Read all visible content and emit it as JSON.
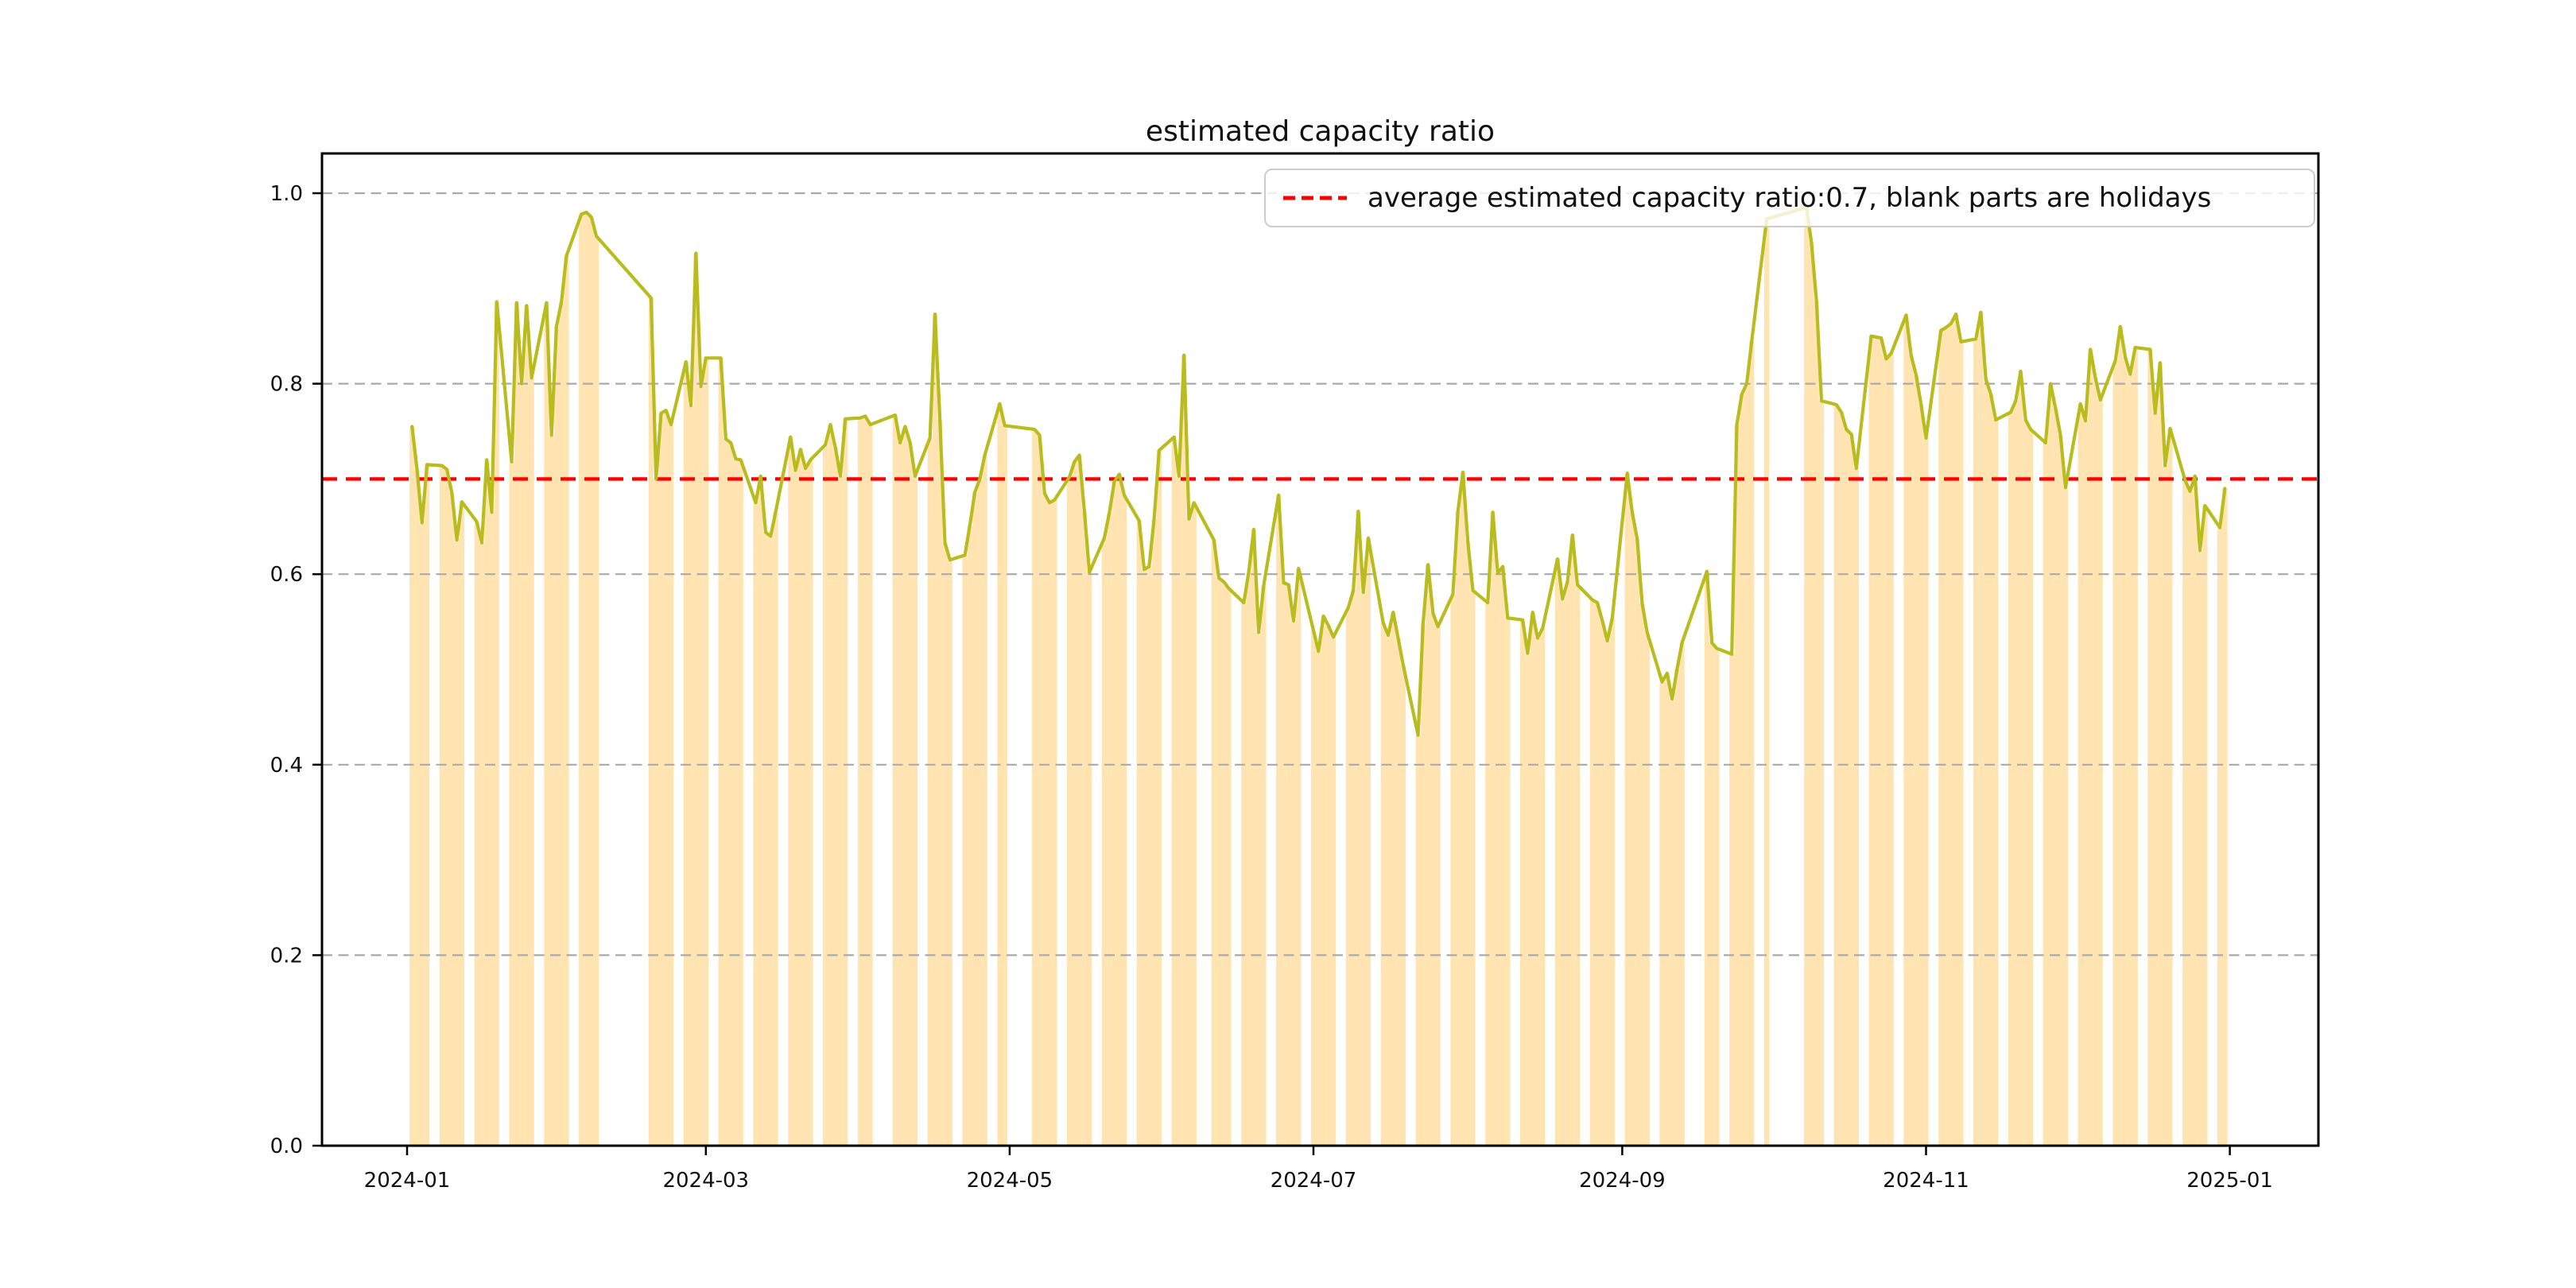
{
  "figure": {
    "title": "estimated capacity ratio",
    "background_color": "#ffffff"
  },
  "legend": {
    "label": "average estimated capacity ratio:0.7, blank parts are holidays",
    "marker": "red-dashed-line",
    "marker_color": "#ff0000"
  },
  "chart_data": {
    "type": "line",
    "overlay_type": "bar",
    "title": "estimated capacity ratio",
    "xlabel": "",
    "ylabel": "",
    "ylim": [
      0,
      1.0414
    ],
    "grid": "horizontal-dashed",
    "legend_position": "upper right",
    "line_color": "#b8bc1e",
    "bar_color": "#ffa600",
    "bar_opacity": 0.3,
    "grid_color": "#aaaaaa",
    "average_line": {
      "value": 0.7,
      "color": "#ff0000",
      "style": "dashed",
      "label": "average estimated capacity ratio:0.7, blank parts are holidays"
    },
    "x_ticks": [
      {
        "label": "2024-01",
        "date": "2024-01-01"
      },
      {
        "label": "2024-03",
        "date": "2024-03-01"
      },
      {
        "label": "2024-05",
        "date": "2024-05-01"
      },
      {
        "label": "2024-07",
        "date": "2024-07-01"
      },
      {
        "label": "2024-09",
        "date": "2024-09-01"
      },
      {
        "label": "2024-11",
        "date": "2024-11-01"
      },
      {
        "label": "2025-01",
        "date": "2025-01-01"
      }
    ],
    "y_ticks": [
      {
        "label": "0.0",
        "value": 0.0
      },
      {
        "label": "0.2",
        "value": 0.2
      },
      {
        "label": "0.4",
        "value": 0.4
      },
      {
        "label": "0.6",
        "value": 0.6
      },
      {
        "label": "0.8",
        "value": 0.8
      },
      {
        "label": "1.0",
        "value": 1.0
      }
    ],
    "series": [
      {
        "name": "estimated capacity ratio",
        "points": [
          [
            "2024-01-02",
            0.755
          ],
          [
            "2024-01-03",
            0.71
          ],
          [
            "2024-01-04",
            0.654
          ],
          [
            "2024-01-05",
            0.715
          ],
          [
            "2024-01-08",
            0.714
          ],
          [
            "2024-01-09",
            0.71
          ],
          [
            "2024-01-10",
            0.685
          ],
          [
            "2024-01-11",
            0.636
          ],
          [
            "2024-01-12",
            0.676
          ],
          [
            "2024-01-15",
            0.655
          ],
          [
            "2024-01-16",
            0.633
          ],
          [
            "2024-01-17",
            0.72
          ],
          [
            "2024-01-18",
            0.665
          ],
          [
            "2024-01-19",
            0.886
          ],
          [
            "2024-01-22",
            0.718
          ],
          [
            "2024-01-23",
            0.885
          ],
          [
            "2024-01-24",
            0.8
          ],
          [
            "2024-01-25",
            0.882
          ],
          [
            "2024-01-26",
            0.806
          ],
          [
            "2024-01-29",
            0.885
          ],
          [
            "2024-01-30",
            0.746
          ],
          [
            "2024-01-31",
            0.86
          ],
          [
            "2024-02-01",
            0.886
          ],
          [
            "2024-02-02",
            0.934
          ],
          [
            "2024-02-05",
            0.978
          ],
          [
            "2024-02-06",
            0.98
          ],
          [
            "2024-02-07",
            0.975
          ],
          [
            "2024-02-08",
            0.955
          ],
          [
            "2024-02-19",
            0.89
          ],
          [
            "2024-02-20",
            0.7
          ],
          [
            "2024-02-21",
            0.769
          ],
          [
            "2024-02-22",
            0.772
          ],
          [
            "2024-02-23",
            0.757
          ],
          [
            "2024-02-26",
            0.823
          ],
          [
            "2024-02-27",
            0.777
          ],
          [
            "2024-02-28",
            0.937
          ],
          [
            "2024-02-29",
            0.797
          ],
          [
            "2024-03-01",
            0.827
          ],
          [
            "2024-03-04",
            0.827
          ],
          [
            "2024-03-05",
            0.742
          ],
          [
            "2024-03-06",
            0.738
          ],
          [
            "2024-03-07",
            0.721
          ],
          [
            "2024-03-08",
            0.72
          ],
          [
            "2024-03-11",
            0.675
          ],
          [
            "2024-03-12",
            0.703
          ],
          [
            "2024-03-13",
            0.644
          ],
          [
            "2024-03-14",
            0.64
          ],
          [
            "2024-03-15",
            0.665
          ],
          [
            "2024-03-18",
            0.744
          ],
          [
            "2024-03-19",
            0.709
          ],
          [
            "2024-03-20",
            0.731
          ],
          [
            "2024-03-21",
            0.711
          ],
          [
            "2024-03-22",
            0.72
          ],
          [
            "2024-03-25",
            0.736
          ],
          [
            "2024-03-26",
            0.757
          ],
          [
            "2024-03-27",
            0.733
          ],
          [
            "2024-03-28",
            0.703
          ],
          [
            "2024-03-29",
            0.763
          ],
          [
            "2024-04-01",
            0.764
          ],
          [
            "2024-04-02",
            0.766
          ],
          [
            "2024-04-03",
            0.757
          ],
          [
            "2024-04-08",
            0.767
          ],
          [
            "2024-04-09",
            0.738
          ],
          [
            "2024-04-10",
            0.755
          ],
          [
            "2024-04-11",
            0.738
          ],
          [
            "2024-04-12",
            0.703
          ],
          [
            "2024-04-15",
            0.743
          ],
          [
            "2024-04-16",
            0.873
          ],
          [
            "2024-04-17",
            0.762
          ],
          [
            "2024-04-18",
            0.633
          ],
          [
            "2024-04-19",
            0.615
          ],
          [
            "2024-04-22",
            0.62
          ],
          [
            "2024-04-23",
            0.651
          ],
          [
            "2024-04-24",
            0.686
          ],
          [
            "2024-04-25",
            0.7
          ],
          [
            "2024-04-26",
            0.725
          ],
          [
            "2024-04-29",
            0.779
          ],
          [
            "2024-04-30",
            0.756
          ],
          [
            "2024-05-06",
            0.752
          ],
          [
            "2024-05-07",
            0.746
          ],
          [
            "2024-05-08",
            0.685
          ],
          [
            "2024-05-09",
            0.675
          ],
          [
            "2024-05-10",
            0.678
          ],
          [
            "2024-05-13",
            0.702
          ],
          [
            "2024-05-14",
            0.718
          ],
          [
            "2024-05-15",
            0.725
          ],
          [
            "2024-05-16",
            0.666
          ],
          [
            "2024-05-17",
            0.602
          ],
          [
            "2024-05-20",
            0.638
          ],
          [
            "2024-05-21",
            0.664
          ],
          [
            "2024-05-22",
            0.697
          ],
          [
            "2024-05-23",
            0.705
          ],
          [
            "2024-05-24",
            0.683
          ],
          [
            "2024-05-27",
            0.656
          ],
          [
            "2024-05-28",
            0.605
          ],
          [
            "2024-05-29",
            0.608
          ],
          [
            "2024-05-30",
            0.658
          ],
          [
            "2024-05-31",
            0.73
          ],
          [
            "2024-06-03",
            0.744
          ],
          [
            "2024-06-04",
            0.703
          ],
          [
            "2024-06-05",
            0.83
          ],
          [
            "2024-06-06",
            0.658
          ],
          [
            "2024-06-07",
            0.675
          ],
          [
            "2024-06-11",
            0.636
          ],
          [
            "2024-06-12",
            0.596
          ],
          [
            "2024-06-13",
            0.592
          ],
          [
            "2024-06-14",
            0.585
          ],
          [
            "2024-06-17",
            0.57
          ],
          [
            "2024-06-18",
            0.602
          ],
          [
            "2024-06-19",
            0.647
          ],
          [
            "2024-06-20",
            0.539
          ],
          [
            "2024-06-21",
            0.588
          ],
          [
            "2024-06-24",
            0.683
          ],
          [
            "2024-06-25",
            0.591
          ],
          [
            "2024-06-26",
            0.589
          ],
          [
            "2024-06-27",
            0.551
          ],
          [
            "2024-06-28",
            0.606
          ],
          [
            "2024-07-01",
            0.541
          ],
          [
            "2024-07-02",
            0.519
          ],
          [
            "2024-07-03",
            0.556
          ],
          [
            "2024-07-04",
            0.546
          ],
          [
            "2024-07-05",
            0.534
          ],
          [
            "2024-07-08",
            0.565
          ],
          [
            "2024-07-09",
            0.583
          ],
          [
            "2024-07-10",
            0.666
          ],
          [
            "2024-07-11",
            0.581
          ],
          [
            "2024-07-12",
            0.638
          ],
          [
            "2024-07-15",
            0.549
          ],
          [
            "2024-07-16",
            0.536
          ],
          [
            "2024-07-17",
            0.56
          ],
          [
            "2024-07-18",
            0.533
          ],
          [
            "2024-07-19",
            0.505
          ],
          [
            "2024-07-22",
            0.431
          ],
          [
            "2024-07-23",
            0.548
          ],
          [
            "2024-07-24",
            0.61
          ],
          [
            "2024-07-25",
            0.559
          ],
          [
            "2024-07-26",
            0.545
          ],
          [
            "2024-07-29",
            0.579
          ],
          [
            "2024-07-30",
            0.666
          ],
          [
            "2024-07-31",
            0.707
          ],
          [
            "2024-08-01",
            0.634
          ],
          [
            "2024-08-02",
            0.583
          ],
          [
            "2024-08-05",
            0.57
          ],
          [
            "2024-08-06",
            0.665
          ],
          [
            "2024-08-07",
            0.601
          ],
          [
            "2024-08-08",
            0.608
          ],
          [
            "2024-08-09",
            0.554
          ],
          [
            "2024-08-12",
            0.552
          ],
          [
            "2024-08-13",
            0.517
          ],
          [
            "2024-08-14",
            0.56
          ],
          [
            "2024-08-15",
            0.533
          ],
          [
            "2024-08-16",
            0.543
          ],
          [
            "2024-08-19",
            0.616
          ],
          [
            "2024-08-20",
            0.574
          ],
          [
            "2024-08-21",
            0.592
          ],
          [
            "2024-08-22",
            0.641
          ],
          [
            "2024-08-23",
            0.589
          ],
          [
            "2024-08-26",
            0.573
          ],
          [
            "2024-08-27",
            0.57
          ],
          [
            "2024-08-28",
            0.551
          ],
          [
            "2024-08-29",
            0.53
          ],
          [
            "2024-08-30",
            0.554
          ],
          [
            "2024-09-02",
            0.706
          ],
          [
            "2024-09-03",
            0.665
          ],
          [
            "2024-09-04",
            0.637
          ],
          [
            "2024-09-05",
            0.569
          ],
          [
            "2024-09-06",
            0.539
          ],
          [
            "2024-09-09",
            0.487
          ],
          [
            "2024-09-10",
            0.496
          ],
          [
            "2024-09-11",
            0.469
          ],
          [
            "2024-09-12",
            0.5
          ],
          [
            "2024-09-13",
            0.528
          ],
          [
            "2024-09-18",
            0.603
          ],
          [
            "2024-09-19",
            0.528
          ],
          [
            "2024-09-20",
            0.522
          ],
          [
            "2024-09-23",
            0.516
          ],
          [
            "2024-09-24",
            0.757
          ],
          [
            "2024-09-25",
            0.789
          ],
          [
            "2024-09-26",
            0.8
          ],
          [
            "2024-09-27",
            0.845
          ],
          [
            "2024-09-30",
            0.973
          ],
          [
            "2024-10-08",
            0.985
          ],
          [
            "2024-10-09",
            0.948
          ],
          [
            "2024-10-10",
            0.887
          ],
          [
            "2024-10-11",
            0.782
          ],
          [
            "2024-10-14",
            0.778
          ],
          [
            "2024-10-15",
            0.77
          ],
          [
            "2024-10-16",
            0.752
          ],
          [
            "2024-10-17",
            0.747
          ],
          [
            "2024-10-18",
            0.711
          ],
          [
            "2024-10-21",
            0.85
          ],
          [
            "2024-10-22",
            0.849
          ],
          [
            "2024-10-23",
            0.848
          ],
          [
            "2024-10-24",
            0.826
          ],
          [
            "2024-10-25",
            0.832
          ],
          [
            "2024-10-28",
            0.872
          ],
          [
            "2024-10-29",
            0.83
          ],
          [
            "2024-10-30",
            0.809
          ],
          [
            "2024-10-31",
            0.778
          ],
          [
            "2024-11-01",
            0.743
          ],
          [
            "2024-11-04",
            0.856
          ],
          [
            "2024-11-05",
            0.859
          ],
          [
            "2024-11-06",
            0.863
          ],
          [
            "2024-11-07",
            0.873
          ],
          [
            "2024-11-08",
            0.844
          ],
          [
            "2024-11-11",
            0.847
          ],
          [
            "2024-11-12",
            0.875
          ],
          [
            "2024-11-13",
            0.805
          ],
          [
            "2024-11-14",
            0.789
          ],
          [
            "2024-11-15",
            0.762
          ],
          [
            "2024-11-18",
            0.77
          ],
          [
            "2024-11-19",
            0.782
          ],
          [
            "2024-11-20",
            0.813
          ],
          [
            "2024-11-21",
            0.762
          ],
          [
            "2024-11-22",
            0.752
          ],
          [
            "2024-11-25",
            0.738
          ],
          [
            "2024-11-26",
            0.8
          ],
          [
            "2024-11-27",
            0.774
          ],
          [
            "2024-11-28",
            0.746
          ],
          [
            "2024-11-29",
            0.691
          ],
          [
            "2024-12-02",
            0.779
          ],
          [
            "2024-12-03",
            0.761
          ],
          [
            "2024-12-04",
            0.836
          ],
          [
            "2024-12-05",
            0.806
          ],
          [
            "2024-12-06",
            0.783
          ],
          [
            "2024-12-09",
            0.824
          ],
          [
            "2024-12-10",
            0.86
          ],
          [
            "2024-12-11",
            0.828
          ],
          [
            "2024-12-12",
            0.81
          ],
          [
            "2024-12-13",
            0.838
          ],
          [
            "2024-12-16",
            0.836
          ],
          [
            "2024-12-17",
            0.769
          ],
          [
            "2024-12-18",
            0.822
          ],
          [
            "2024-12-19",
            0.714
          ],
          [
            "2024-12-20",
            0.753
          ],
          [
            "2024-12-23",
            0.699
          ],
          [
            "2024-12-24",
            0.687
          ],
          [
            "2024-12-25",
            0.703
          ],
          [
            "2024-12-26",
            0.625
          ],
          [
            "2024-12-27",
            0.672
          ],
          [
            "2024-12-30",
            0.649
          ],
          [
            "2024-12-31",
            0.69
          ]
        ]
      }
    ]
  }
}
